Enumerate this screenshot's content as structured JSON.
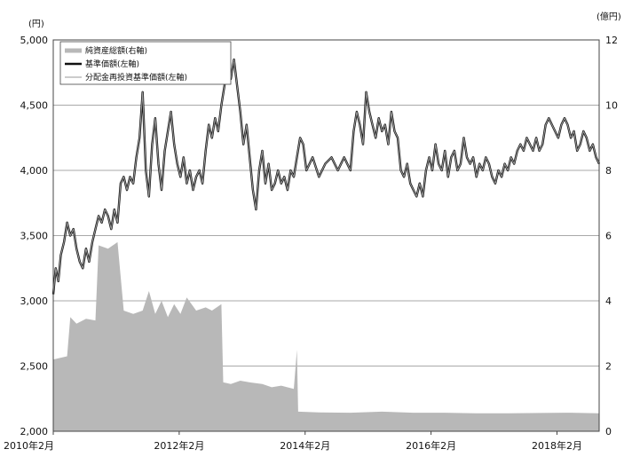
{
  "chart_data": {
    "type": "line",
    "y_left": {
      "unit": "(円)",
      "min": 2000,
      "max": 5000,
      "ticks": [
        2000,
        2500,
        3000,
        3500,
        4000,
        4500,
        5000
      ],
      "tick_labels": [
        "2,000",
        "2,500",
        "3,000",
        "3,500",
        "4,000",
        "4,500",
        "5,000"
      ]
    },
    "y_right": {
      "unit": "(億円)",
      "min": 0,
      "max": 12,
      "ticks": [
        0,
        2,
        4,
        6,
        8,
        10,
        12
      ],
      "tick_labels": [
        "0",
        "2",
        "4",
        "6",
        "8",
        "10",
        "12"
      ]
    },
    "x_ticks": [
      {
        "x": 2010.08,
        "label": "2010年2月"
      },
      {
        "x": 2012.08,
        "label": "2012年2月"
      },
      {
        "x": 2014.08,
        "label": "2014年2月"
      },
      {
        "x": 2016.08,
        "label": "2016年2月"
      },
      {
        "x": 2018.08,
        "label": "2018年2月"
      }
    ],
    "x_range": [
      2010.08,
      2018.75
    ],
    "grid": true,
    "legend_position": "top-left",
    "series": [
      {
        "name": "純資産総額(右軸)",
        "kind": "area",
        "axis": "right",
        "color": "#b8b8b8",
        "points": [
          [
            2010.08,
            2.2
          ],
          [
            2010.3,
            2.3
          ],
          [
            2010.35,
            3.5
          ],
          [
            2010.45,
            3.3
          ],
          [
            2010.6,
            3.45
          ],
          [
            2010.75,
            3.4
          ],
          [
            2010.8,
            5.7
          ],
          [
            2010.95,
            5.6
          ],
          [
            2011.1,
            5.8
          ],
          [
            2011.2,
            3.7
          ],
          [
            2011.35,
            3.6
          ],
          [
            2011.5,
            3.7
          ],
          [
            2011.6,
            4.3
          ],
          [
            2011.7,
            3.6
          ],
          [
            2011.8,
            4.0
          ],
          [
            2011.9,
            3.5
          ],
          [
            2012.0,
            3.9
          ],
          [
            2012.1,
            3.6
          ],
          [
            2012.2,
            4.1
          ],
          [
            2012.35,
            3.7
          ],
          [
            2012.5,
            3.8
          ],
          [
            2012.6,
            3.7
          ],
          [
            2012.75,
            3.9
          ],
          [
            2012.78,
            1.5
          ],
          [
            2012.9,
            1.45
          ],
          [
            2013.05,
            1.55
          ],
          [
            2013.2,
            1.5
          ],
          [
            2013.4,
            1.45
          ],
          [
            2013.55,
            1.35
          ],
          [
            2013.7,
            1.4
          ],
          [
            2013.9,
            1.3
          ],
          [
            2013.95,
            2.5
          ],
          [
            2013.97,
            0.6
          ],
          [
            2014.3,
            0.58
          ],
          [
            2014.8,
            0.57
          ],
          [
            2015.3,
            0.6
          ],
          [
            2015.8,
            0.57
          ],
          [
            2016.3,
            0.57
          ],
          [
            2016.8,
            0.55
          ],
          [
            2017.3,
            0.55
          ],
          [
            2017.8,
            0.56
          ],
          [
            2018.3,
            0.57
          ],
          [
            2018.75,
            0.55
          ]
        ]
      },
      {
        "name": "基準価額(左軸)",
        "kind": "line",
        "axis": "left",
        "color": "#111111",
        "width": 2.4,
        "points": [
          [
            2010.08,
            3050
          ],
          [
            2010.12,
            3250
          ],
          [
            2010.16,
            3150
          ],
          [
            2010.2,
            3350
          ],
          [
            2010.25,
            3450
          ],
          [
            2010.3,
            3600
          ],
          [
            2010.35,
            3500
          ],
          [
            2010.4,
            3550
          ],
          [
            2010.45,
            3400
          ],
          [
            2010.5,
            3300
          ],
          [
            2010.55,
            3250
          ],
          [
            2010.6,
            3400
          ],
          [
            2010.65,
            3300
          ],
          [
            2010.7,
            3450
          ],
          [
            2010.75,
            3550
          ],
          [
            2010.8,
            3650
          ],
          [
            2010.85,
            3600
          ],
          [
            2010.9,
            3700
          ],
          [
            2010.95,
            3650
          ],
          [
            2011.0,
            3550
          ],
          [
            2011.05,
            3700
          ],
          [
            2011.1,
            3600
          ],
          [
            2011.15,
            3900
          ],
          [
            2011.2,
            3950
          ],
          [
            2011.25,
            3850
          ],
          [
            2011.3,
            3950
          ],
          [
            2011.35,
            3900
          ],
          [
            2011.4,
            4100
          ],
          [
            2011.45,
            4250
          ],
          [
            2011.5,
            4600
          ],
          [
            2011.55,
            4000
          ],
          [
            2011.6,
            3800
          ],
          [
            2011.65,
            4200
          ],
          [
            2011.7,
            4400
          ],
          [
            2011.75,
            4050
          ],
          [
            2011.8,
            3850
          ],
          [
            2011.85,
            4150
          ],
          [
            2011.9,
            4300
          ],
          [
            2011.95,
            4450
          ],
          [
            2012.0,
            4200
          ],
          [
            2012.05,
            4050
          ],
          [
            2012.1,
            3950
          ],
          [
            2012.15,
            4100
          ],
          [
            2012.2,
            3900
          ],
          [
            2012.25,
            4000
          ],
          [
            2012.3,
            3850
          ],
          [
            2012.35,
            3950
          ],
          [
            2012.4,
            4000
          ],
          [
            2012.45,
            3900
          ],
          [
            2012.5,
            4150
          ],
          [
            2012.55,
            4350
          ],
          [
            2012.6,
            4250
          ],
          [
            2012.65,
            4400
          ],
          [
            2012.7,
            4300
          ],
          [
            2012.75,
            4500
          ],
          [
            2012.8,
            4650
          ],
          [
            2012.85,
            4800
          ],
          [
            2012.9,
            4700
          ],
          [
            2012.95,
            4850
          ],
          [
            2013.0,
            4650
          ],
          [
            2013.05,
            4450
          ],
          [
            2013.1,
            4200
          ],
          [
            2013.15,
            4350
          ],
          [
            2013.2,
            4100
          ],
          [
            2013.25,
            3850
          ],
          [
            2013.3,
            3700
          ],
          [
            2013.35,
            4000
          ],
          [
            2013.4,
            4150
          ],
          [
            2013.45,
            3900
          ],
          [
            2013.5,
            4050
          ],
          [
            2013.55,
            3850
          ],
          [
            2013.6,
            3900
          ],
          [
            2013.65,
            4000
          ],
          [
            2013.7,
            3900
          ],
          [
            2013.75,
            3950
          ],
          [
            2013.8,
            3850
          ],
          [
            2013.85,
            4000
          ],
          [
            2013.9,
            3950
          ],
          [
            2013.95,
            4100
          ],
          [
            2014.0,
            4250
          ],
          [
            2014.05,
            4200
          ],
          [
            2014.1,
            4000
          ],
          [
            2014.15,
            4050
          ],
          [
            2014.2,
            4100
          ],
          [
            2014.3,
            3950
          ],
          [
            2014.4,
            4050
          ],
          [
            2014.5,
            4100
          ],
          [
            2014.6,
            4000
          ],
          [
            2014.7,
            4100
          ],
          [
            2014.8,
            4000
          ],
          [
            2014.85,
            4300
          ],
          [
            2014.9,
            4450
          ],
          [
            2014.95,
            4350
          ],
          [
            2015.0,
            4200
          ],
          [
            2015.05,
            4600
          ],
          [
            2015.1,
            4450
          ],
          [
            2015.15,
            4350
          ],
          [
            2015.2,
            4250
          ],
          [
            2015.25,
            4400
          ],
          [
            2015.3,
            4300
          ],
          [
            2015.35,
            4350
          ],
          [
            2015.4,
            4200
          ],
          [
            2015.45,
            4450
          ],
          [
            2015.5,
            4300
          ],
          [
            2015.55,
            4250
          ],
          [
            2015.6,
            4000
          ],
          [
            2015.65,
            3950
          ],
          [
            2015.7,
            4050
          ],
          [
            2015.75,
            3900
          ],
          [
            2015.8,
            3850
          ],
          [
            2015.85,
            3800
          ],
          [
            2015.9,
            3900
          ],
          [
            2015.95,
            3800
          ],
          [
            2016.0,
            4000
          ],
          [
            2016.05,
            4100
          ],
          [
            2016.1,
            4000
          ],
          [
            2016.15,
            4200
          ],
          [
            2016.2,
            4050
          ],
          [
            2016.25,
            4000
          ],
          [
            2016.3,
            4150
          ],
          [
            2016.35,
            3950
          ],
          [
            2016.4,
            4100
          ],
          [
            2016.45,
            4150
          ],
          [
            2016.5,
            4000
          ],
          [
            2016.55,
            4050
          ],
          [
            2016.6,
            4250
          ],
          [
            2016.65,
            4100
          ],
          [
            2016.7,
            4050
          ],
          [
            2016.75,
            4100
          ],
          [
            2016.8,
            3950
          ],
          [
            2016.85,
            4050
          ],
          [
            2016.9,
            4000
          ],
          [
            2016.95,
            4100
          ],
          [
            2017.0,
            4050
          ],
          [
            2017.05,
            3950
          ],
          [
            2017.1,
            3900
          ],
          [
            2017.15,
            4000
          ],
          [
            2017.2,
            3950
          ],
          [
            2017.25,
            4050
          ],
          [
            2017.3,
            4000
          ],
          [
            2017.35,
            4100
          ],
          [
            2017.4,
            4050
          ],
          [
            2017.45,
            4150
          ],
          [
            2017.5,
            4200
          ],
          [
            2017.55,
            4150
          ],
          [
            2017.6,
            4250
          ],
          [
            2017.65,
            4200
          ],
          [
            2017.7,
            4150
          ],
          [
            2017.75,
            4250
          ],
          [
            2017.8,
            4150
          ],
          [
            2017.85,
            4200
          ],
          [
            2017.9,
            4350
          ],
          [
            2017.95,
            4400
          ],
          [
            2018.0,
            4350
          ],
          [
            2018.05,
            4300
          ],
          [
            2018.1,
            4250
          ],
          [
            2018.15,
            4350
          ],
          [
            2018.2,
            4400
          ],
          [
            2018.25,
            4350
          ],
          [
            2018.3,
            4250
          ],
          [
            2018.35,
            4300
          ],
          [
            2018.4,
            4150
          ],
          [
            2018.45,
            4200
          ],
          [
            2018.5,
            4300
          ],
          [
            2018.55,
            4250
          ],
          [
            2018.6,
            4150
          ],
          [
            2018.65,
            4200
          ],
          [
            2018.7,
            4100
          ],
          [
            2018.75,
            4050
          ]
        ]
      },
      {
        "name": "分配金再投資基準価額(左軸)",
        "kind": "line",
        "axis": "left",
        "color": "#9a9a9a",
        "width": 1,
        "offset": 0
      }
    ]
  }
}
